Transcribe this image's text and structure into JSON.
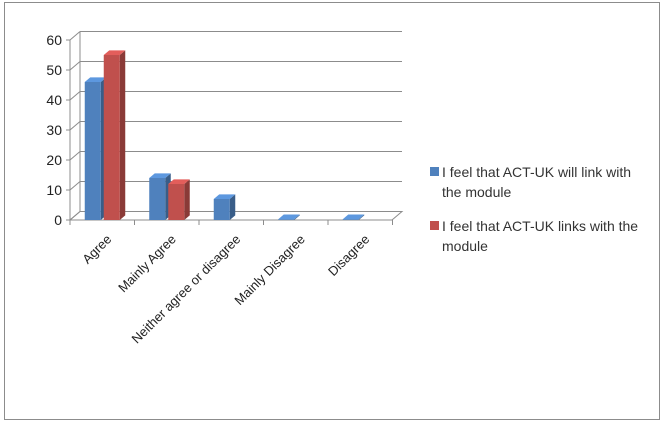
{
  "chart_data": {
    "type": "bar",
    "three_d": true,
    "title": "",
    "xlabel": "",
    "ylabel": "",
    "ylim": [
      0,
      60
    ],
    "y_ticks": [
      0,
      10,
      20,
      30,
      40,
      50,
      60
    ],
    "grid": true,
    "legend_position": "right",
    "categories": [
      "Agree",
      "Mainly Agree",
      "Neither agree or disagree",
      "Mainly Disagree",
      "Disagree"
    ],
    "series": [
      {
        "name": "I feel that ACT-UK will link with the module",
        "color": "#4f81bd",
        "values": [
          46,
          14,
          7,
          0,
          0
        ]
      },
      {
        "name": "I feel that ACT-UK links with the module",
        "color": "#c0504d",
        "values": [
          55,
          12,
          null,
          null,
          null
        ]
      }
    ]
  }
}
